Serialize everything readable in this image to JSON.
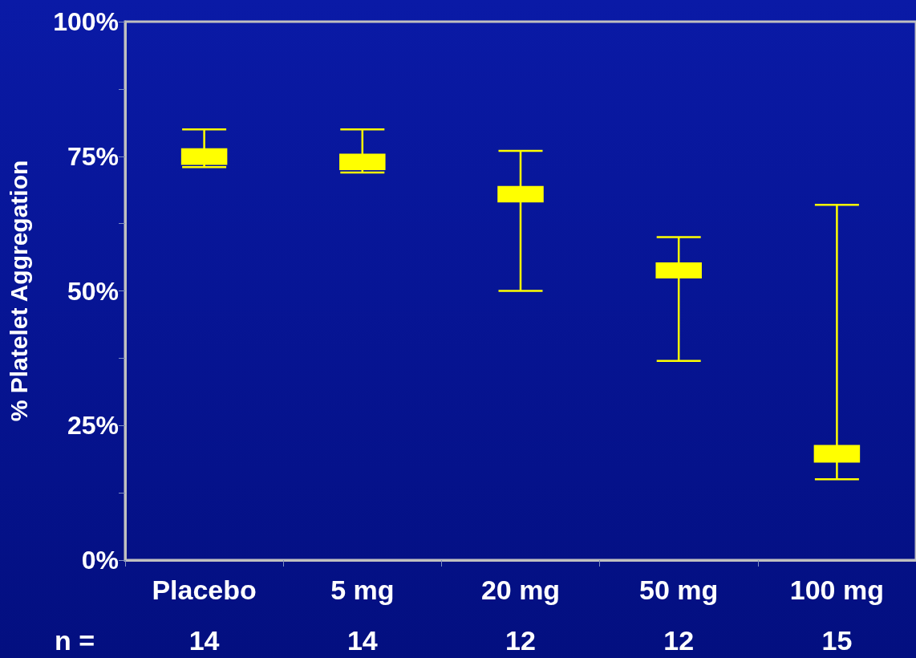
{
  "chart_data": {
    "type": "box",
    "ylabel": "% Platelet Aggregation",
    "categories": [
      "Placebo",
      "5 mg",
      "20 mg",
      "50 mg",
      "100 mg"
    ],
    "series": [
      {
        "color": "#ffff00",
        "boxes": [
          {
            "low": 73,
            "q1": 73.6,
            "median": 75,
            "q3": 76.3,
            "high": 80
          },
          {
            "low": 72,
            "q1": 72.6,
            "median": 74,
            "q3": 75.3,
            "high": 80
          },
          {
            "low": 50,
            "q1": 66.6,
            "median": 68,
            "q3": 69.3,
            "high": 76
          },
          {
            "low": 37,
            "q1": 52.5,
            "median": 54,
            "q3": 55.1,
            "high": 60
          },
          {
            "low": 15,
            "q1": 18.3,
            "median": 20,
            "q3": 21.2,
            "high": 66
          }
        ]
      }
    ],
    "ylim": [
      0,
      100
    ],
    "yticks": [
      {
        "value": 0,
        "label": "0%"
      },
      {
        "value": 12.5,
        "label": null
      },
      {
        "value": 25,
        "label": "25%"
      },
      {
        "value": 37.5,
        "label": null
      },
      {
        "value": 50,
        "label": "50%"
      },
      {
        "value": 62.5,
        "label": null
      },
      {
        "value": 75,
        "label": "75%"
      },
      {
        "value": 87.5,
        "label": null
      },
      {
        "value": 100,
        "label": "100%"
      }
    ],
    "grid": false,
    "annotations": [
      "n =",
      "14",
      "14",
      "12",
      "12",
      "15"
    ]
  }
}
